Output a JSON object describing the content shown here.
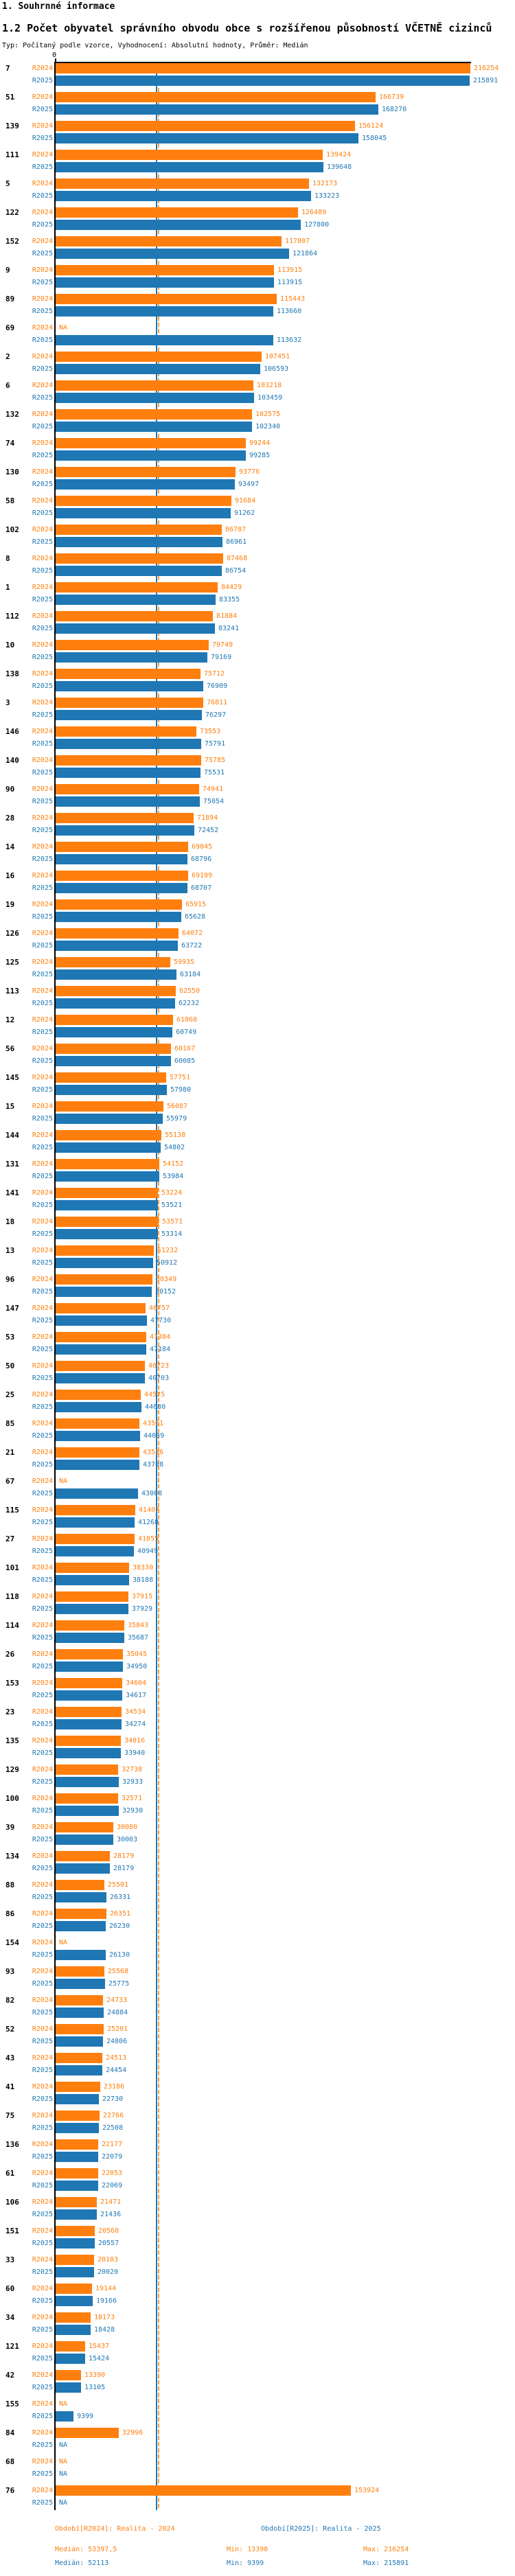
{
  "header": {
    "section_title": "1. Souhrnné informace",
    "chart_title": "1.2 Počet obyvatel správního obvodu obce s rozšířenou působností VČETNĚ cizinců",
    "subtitle": "Typ: Počítaný podle vzorce, Vyhodnocení: Absolutní hodnoty, Průměr: Medián"
  },
  "chart_data": {
    "type": "bar",
    "orientation": "horizontal",
    "title": "1.2 Počet obyvatel správního obvodu obce s rozšířenou působností VČETNĚ cizinců",
    "x_zero_label": "0",
    "x_min": 0,
    "x_max": 216254,
    "grid": false,
    "legend_position": "bottom",
    "na_label": "NA",
    "series": [
      {
        "name": "R2024",
        "color": "#ff7f0e",
        "period": "Realita - 2024"
      },
      {
        "name": "R2025",
        "color": "#1f77b4",
        "period": "Realita - 2025"
      }
    ],
    "medians": {
      "R2024": 53397.5,
      "R2025": 52113
    },
    "rows": [
      {
        "id": "7",
        "R2024": 216254,
        "R2025": 215891
      },
      {
        "id": "51",
        "R2024": 166739,
        "R2025": 168270
      },
      {
        "id": "139",
        "R2024": 156124,
        "R2025": 158045
      },
      {
        "id": "111",
        "R2024": 139424,
        "R2025": 139648
      },
      {
        "id": "5",
        "R2024": 132173,
        "R2025": 133223
      },
      {
        "id": "122",
        "R2024": 126489,
        "R2025": 127800
      },
      {
        "id": "152",
        "R2024": 117807,
        "R2025": 121864
      },
      {
        "id": "9",
        "R2024": 113915,
        "R2025": 113915
      },
      {
        "id": "89",
        "R2024": 115443,
        "R2025": 113660
      },
      {
        "id": "69",
        "R2024": "NA",
        "R2025": 113632
      },
      {
        "id": "2",
        "R2024": 107451,
        "R2025": 106593
      },
      {
        "id": "6",
        "R2024": 103218,
        "R2025": 103459
      },
      {
        "id": "132",
        "R2024": 102575,
        "R2025": 102340
      },
      {
        "id": "74",
        "R2024": 99244,
        "R2025": 99285
      },
      {
        "id": "130",
        "R2024": 93776,
        "R2025": 93497
      },
      {
        "id": "58",
        "R2024": 91684,
        "R2025": 91262
      },
      {
        "id": "102",
        "R2024": 86787,
        "R2025": 86961
      },
      {
        "id": "8",
        "R2024": 87468,
        "R2025": 86754
      },
      {
        "id": "1",
        "R2024": 84429,
        "R2025": 83355
      },
      {
        "id": "112",
        "R2024": 81884,
        "R2025": 83241
      },
      {
        "id": "10",
        "R2024": 79749,
        "R2025": 79169
      },
      {
        "id": "138",
        "R2024": 75712,
        "R2025": 76909
      },
      {
        "id": "3",
        "R2024": 76811,
        "R2025": 76297
      },
      {
        "id": "146",
        "R2024": 73553,
        "R2025": 75791
      },
      {
        "id": "140",
        "R2024": 75785,
        "R2025": 75531
      },
      {
        "id": "90",
        "R2024": 74941,
        "R2025": 75054
      },
      {
        "id": "28",
        "R2024": 71894,
        "R2025": 72452
      },
      {
        "id": "14",
        "R2024": 69045,
        "R2025": 68796
      },
      {
        "id": "16",
        "R2024": 69199,
        "R2025": 68707
      },
      {
        "id": "19",
        "R2024": 65915,
        "R2025": 65628
      },
      {
        "id": "126",
        "R2024": 64072,
        "R2025": 63722
      },
      {
        "id": "125",
        "R2024": 59935,
        "R2025": 63184
      },
      {
        "id": "113",
        "R2024": 62550,
        "R2025": 62232
      },
      {
        "id": "12",
        "R2024": 61060,
        "R2025": 60749
      },
      {
        "id": "56",
        "R2024": 60167,
        "R2025": 60085
      },
      {
        "id": "145",
        "R2024": 57751,
        "R2025": 57980
      },
      {
        "id": "15",
        "R2024": 56087,
        "R2025": 55979
      },
      {
        "id": "144",
        "R2024": 55138,
        "R2025": 54802
      },
      {
        "id": "131",
        "R2024": 54152,
        "R2025": 53984
      },
      {
        "id": "141",
        "R2024": 53224,
        "R2025": 53521
      },
      {
        "id": "18",
        "R2024": 53571,
        "R2025": 53314
      },
      {
        "id": "13",
        "R2024": 51232,
        "R2025": 50912
      },
      {
        "id": "96",
        "R2024": 50349,
        "R2025": 50152
      },
      {
        "id": "147",
        "R2024": 46757,
        "R2025": 47730
      },
      {
        "id": "53",
        "R2024": 47384,
        "R2025": 47184
      },
      {
        "id": "50",
        "R2024": 46723,
        "R2025": 46703
      },
      {
        "id": "25",
        "R2024": 44525,
        "R2025": 44680
      },
      {
        "id": "85",
        "R2024": 43561,
        "R2025": 44039
      },
      {
        "id": "21",
        "R2024": 43556,
        "R2025": 43708
      },
      {
        "id": "67",
        "R2024": "NA",
        "R2025": 43008
      },
      {
        "id": "115",
        "R2024": 41407,
        "R2025": 41268
      },
      {
        "id": "27",
        "R2024": 41055,
        "R2025": 40949
      },
      {
        "id": "101",
        "R2024": 38330,
        "R2025": 38188
      },
      {
        "id": "118",
        "R2024": 37915,
        "R2025": 37929
      },
      {
        "id": "114",
        "R2024": 35843,
        "R2025": 35687
      },
      {
        "id": "26",
        "R2024": 35045,
        "R2025": 34950
      },
      {
        "id": "153",
        "R2024": 34604,
        "R2025": 34617
      },
      {
        "id": "23",
        "R2024": 34534,
        "R2025": 34274
      },
      {
        "id": "135",
        "R2024": 34016,
        "R2025": 33940
      },
      {
        "id": "129",
        "R2024": 32738,
        "R2025": 32933
      },
      {
        "id": "100",
        "R2024": 32571,
        "R2025": 32930
      },
      {
        "id": "39",
        "R2024": 30080,
        "R2025": 30003
      },
      {
        "id": "134",
        "R2024": 28179,
        "R2025": 28179
      },
      {
        "id": "88",
        "R2024": 25501,
        "R2025": 26331
      },
      {
        "id": "86",
        "R2024": 26351,
        "R2025": 26230
      },
      {
        "id": "154",
        "R2024": "NA",
        "R2025": 26130
      },
      {
        "id": "93",
        "R2024": 25568,
        "R2025": 25775
      },
      {
        "id": "82",
        "R2024": 24733,
        "R2025": 24884
      },
      {
        "id": "52",
        "R2024": 25201,
        "R2025": 24806
      },
      {
        "id": "43",
        "R2024": 24513,
        "R2025": 24454
      },
      {
        "id": "41",
        "R2024": 23186,
        "R2025": 22730
      },
      {
        "id": "75",
        "R2024": 22766,
        "R2025": 22508
      },
      {
        "id": "136",
        "R2024": 22177,
        "R2025": 22079
      },
      {
        "id": "61",
        "R2024": 22053,
        "R2025": 22069
      },
      {
        "id": "106",
        "R2024": 21471,
        "R2025": 21436
      },
      {
        "id": "151",
        "R2024": 20560,
        "R2025": 20557
      },
      {
        "id": "33",
        "R2024": 20103,
        "R2025": 20020
      },
      {
        "id": "60",
        "R2024": 19144,
        "R2025": 19166
      },
      {
        "id": "34",
        "R2024": 18173,
        "R2025": 18428
      },
      {
        "id": "121",
        "R2024": 15437,
        "R2025": 15424
      },
      {
        "id": "42",
        "R2024": 13390,
        "R2025": 13105
      },
      {
        "id": "155",
        "R2024": "NA",
        "R2025": 9399
      },
      {
        "id": "84",
        "R2024": 32996,
        "R2025": "NA"
      },
      {
        "id": "68",
        "R2024": "NA",
        "R2025": "NA"
      },
      {
        "id": "76",
        "R2024": 153924,
        "R2025": "NA"
      }
    ]
  },
  "footer": {
    "legend": [
      {
        "label": "Období[R2024]: Realita - 2024",
        "color": "#ff7f0e"
      },
      {
        "label": "Období[R2025]: Realita - 2025",
        "color": "#1f77b4"
      }
    ],
    "stats": [
      {
        "median": "Medián: 53397,5",
        "min": "Min: 13390",
        "max": "Max: 216254",
        "color": "#ff7f0e"
      },
      {
        "median": "Medián: 52113",
        "min": "Min: 9399",
        "max": "Max: 215891",
        "color": "#1f77b4"
      }
    ]
  }
}
